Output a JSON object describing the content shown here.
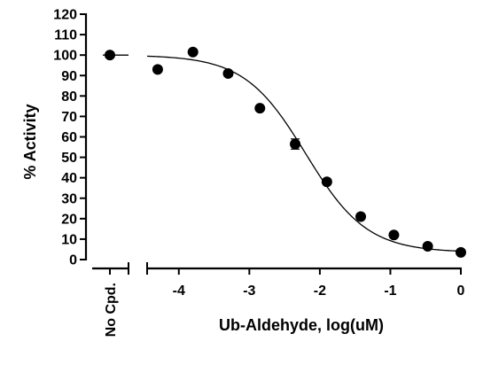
{
  "chart_data": {
    "type": "scatter",
    "title": "",
    "xlabel": "Ub-Aldehyde, log(uM)",
    "ylabel": "% Activity",
    "ylim": [
      0,
      120
    ],
    "y_ticks": [
      0,
      10,
      20,
      30,
      40,
      50,
      60,
      70,
      80,
      90,
      100,
      110,
      120
    ],
    "xlim": [
      -4.45,
      0
    ],
    "x_ticks": [
      -4,
      -3,
      -2,
      -1,
      0
    ],
    "x_tick_labels": [
      "-4",
      "-3",
      "-2",
      "-1",
      "0"
    ],
    "control": {
      "label": "No Cpd.",
      "y": 100
    },
    "series": [
      {
        "points": [
          {
            "x": -4.3,
            "y": 93
          },
          {
            "x": -3.8,
            "y": 101.5
          },
          {
            "x": -3.3,
            "y": 91
          },
          {
            "x": -2.85,
            "y": 74
          },
          {
            "x": -2.35,
            "y": 56.5,
            "err": 2.5
          },
          {
            "x": -1.9,
            "y": 38
          },
          {
            "x": -1.42,
            "y": 21
          },
          {
            "x": -0.95,
            "y": 12
          },
          {
            "x": -0.47,
            "y": 6.5
          },
          {
            "x": 0,
            "y": 3.5
          }
        ]
      }
    ],
    "fit": {
      "model": "4PL",
      "top": 100,
      "bottom": 3.5,
      "log_ic50": -2.2,
      "hill": 1.0
    },
    "grid": false,
    "legend": "none"
  }
}
